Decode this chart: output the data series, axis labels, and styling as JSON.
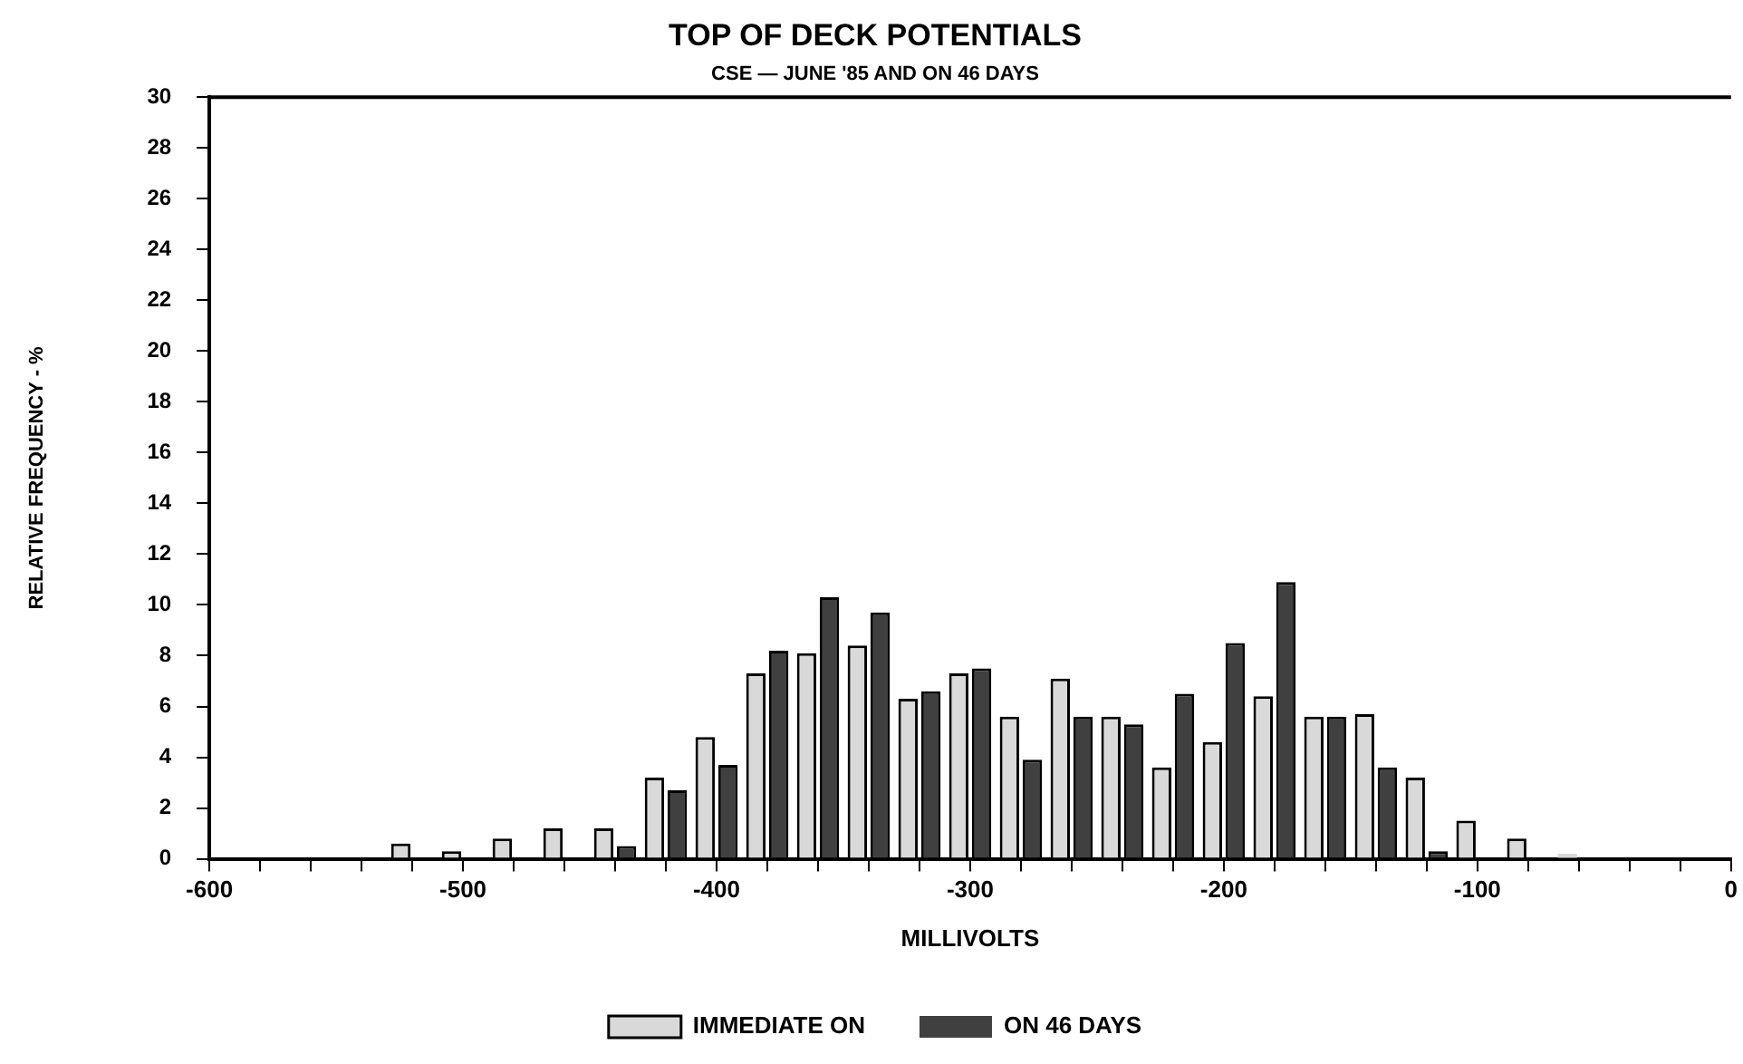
{
  "chart_data": {
    "type": "bar",
    "title": "TOP OF DECK POTENTIALS",
    "subtitle": "CSE — JUNE '85 AND ON 46 DAYS",
    "xlabel": "MILLIVOLTS",
    "ylabel": "RELATIVE FREQUENCY - %",
    "x": [
      -520,
      -500,
      -480,
      -460,
      -440,
      -420,
      -400,
      -380,
      -360,
      -340,
      -320,
      -300,
      -280,
      -260,
      -240,
      -220,
      -200,
      -180,
      -160,
      -140,
      -120,
      -100,
      -80,
      -60
    ],
    "series": [
      {
        "name": "IMMEDIATE ON",
        "color": "#d9d9d9",
        "values": [
          0.6,
          0.3,
          0.8,
          1.2,
          1.2,
          3.2,
          4.8,
          7.3,
          8.1,
          8.4,
          6.3,
          7.3,
          5.6,
          7.1,
          5.6,
          3.6,
          4.6,
          6.4,
          5.6,
          5.7,
          3.2,
          1.5,
          0.8,
          0.2
        ]
      },
      {
        "name": "ON 46 DAYS",
        "color": "#404040",
        "values": [
          0,
          0,
          0,
          0,
          0.5,
          2.7,
          3.7,
          8.2,
          10.3,
          9.7,
          6.6,
          7.5,
          3.9,
          5.6,
          5.3,
          6.5,
          8.5,
          10.9,
          5.6,
          3.6,
          0.3,
          0,
          0,
          0
        ]
      }
    ],
    "xlim": [
      -600,
      0
    ],
    "xticks": [
      -600,
      {
        "value": -580,
        "label": null
      },
      {
        "value": -560,
        "label": null
      },
      {
        "value": -540,
        "label": null
      },
      {
        "value": -520,
        "label": null
      },
      -500,
      {
        "value": -480,
        "label": null
      },
      {
        "value": -460,
        "label": null
      },
      {
        "value": -440,
        "label": null
      },
      {
        "value": -420,
        "label": null
      },
      -400,
      {
        "value": -380,
        "label": null
      },
      {
        "value": -360,
        "label": null
      },
      {
        "value": -340,
        "label": null
      },
      {
        "value": -320,
        "label": null
      },
      -300,
      {
        "value": -280,
        "label": null
      },
      {
        "value": -260,
        "label": null
      },
      {
        "value": -240,
        "label": null
      },
      {
        "value": -220,
        "label": null
      },
      -200,
      {
        "value": -180,
        "label": null
      },
      {
        "value": -160,
        "label": null
      },
      {
        "value": -140,
        "label": null
      },
      {
        "value": -120,
        "label": null
      },
      -100,
      {
        "value": -80,
        "label": null
      },
      {
        "value": -60,
        "label": null
      },
      {
        "value": -40,
        "label": null
      },
      {
        "value": -20,
        "label": null
      },
      0
    ],
    "ylim": [
      0,
      30
    ],
    "yticks": [
      0,
      2,
      4,
      6,
      8,
      10,
      12,
      14,
      16,
      18,
      20,
      22,
      24,
      26,
      28,
      30
    ],
    "grid": false,
    "legend": "bottom"
  }
}
